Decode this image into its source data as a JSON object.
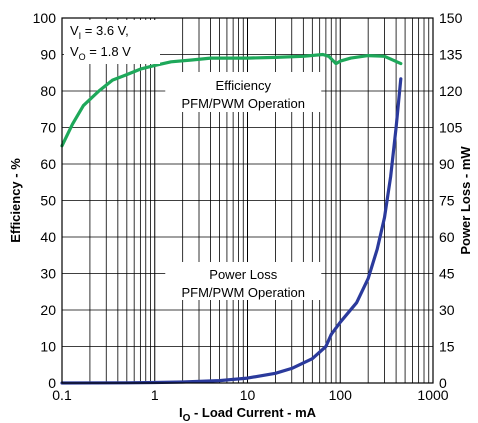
{
  "chart_data": {
    "type": "line",
    "x_scale": "log",
    "xlim": [
      0.1,
      1000
    ],
    "y_left_lim": [
      0,
      100
    ],
    "y_right_lim": [
      0,
      150
    ],
    "x_ticks": [
      "0.1",
      "1",
      "10",
      "100",
      "1000"
    ],
    "y_left_ticks": [
      "0",
      "10",
      "20",
      "30",
      "40",
      "50",
      "60",
      "70",
      "80",
      "90",
      "100"
    ],
    "y_right_ticks": [
      "0",
      "15",
      "30",
      "45",
      "60",
      "75",
      "90",
      "105",
      "120",
      "135",
      "150"
    ],
    "xlabel_main": "I",
    "xlabel_sub": "O",
    "xlabel_rest": " - Load Current - mA",
    "ylabel_left": "Efficiency - %",
    "ylabel_right": "Power Loss - mW",
    "grid": true,
    "conditions": {
      "line1_main": "V",
      "line1_sub": "I",
      "line1_rest": " = 3.6 V,",
      "line2_main": "V",
      "line2_sub": "O",
      "line2_rest": " = 1.8 V"
    },
    "series": [
      {
        "axis": "left",
        "color": "#1ea85a",
        "label_line1": "Efficiency",
        "label_line2": "PFM/PWM Operation",
        "x": [
          0.1,
          0.13,
          0.17,
          0.25,
          0.35,
          0.5,
          0.7,
          1.0,
          1.5,
          2.5,
          4,
          7,
          10,
          20,
          40,
          65,
          75,
          90,
          100,
          130,
          200,
          300,
          450
        ],
        "y": [
          65,
          71,
          76,
          80,
          83,
          84.5,
          86,
          87,
          88,
          88.5,
          89,
          89,
          89,
          89.2,
          89.5,
          90,
          89.5,
          87.5,
          88.2,
          89,
          89.7,
          89.5,
          87.5
        ]
      },
      {
        "axis": "right",
        "color": "#2b3a9c",
        "label_line1": "Power Loss",
        "label_line2": "PFM/PWM Operation",
        "x": [
          0.1,
          0.5,
          1,
          2,
          5,
          10,
          20,
          30,
          50,
          70,
          80,
          100,
          150,
          200,
          250,
          300,
          350,
          400,
          450
        ],
        "y": [
          0,
          0.1,
          0.2,
          0.4,
          1,
          2,
          4,
          6,
          10,
          15,
          20,
          25,
          33,
          43,
          55,
          68,
          85,
          105,
          125
        ]
      }
    ]
  }
}
